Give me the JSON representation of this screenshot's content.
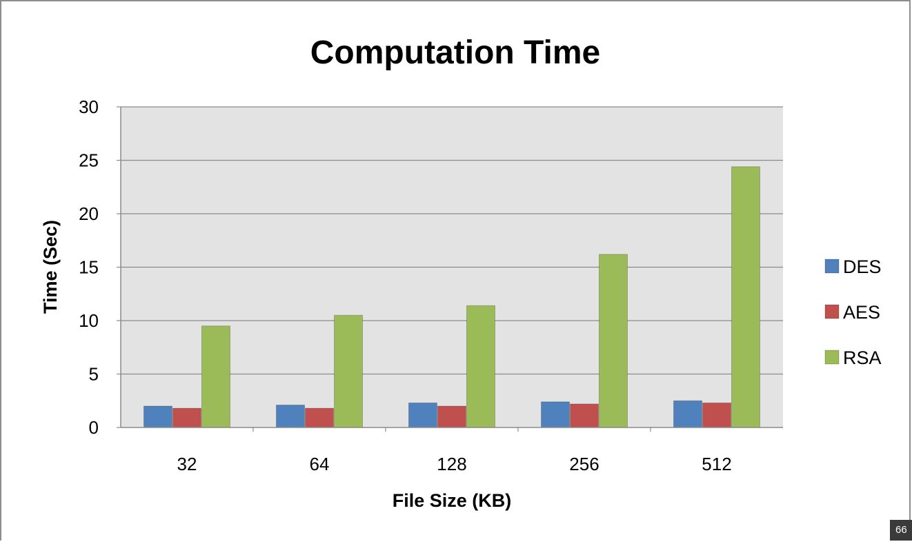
{
  "page_number": "66",
  "chart_data": {
    "type": "bar",
    "title": "Computation Time",
    "xlabel": "File Size (KB)",
    "ylabel": "Time (Sec)",
    "categories": [
      "32",
      "64",
      "128",
      "256",
      "512"
    ],
    "series": [
      {
        "name": "DES",
        "color": "#4f81bd",
        "values": [
          2.0,
          2.1,
          2.3,
          2.4,
          2.5
        ]
      },
      {
        "name": "AES",
        "color": "#c0504d",
        "values": [
          1.8,
          1.8,
          2.0,
          2.2,
          2.3
        ]
      },
      {
        "name": "RSA",
        "color": "#9bbb59",
        "values": [
          9.5,
          10.5,
          11.4,
          16.2,
          24.4
        ]
      }
    ],
    "ylim": [
      0,
      30
    ],
    "yticks": [
      0,
      5,
      10,
      15,
      20,
      25,
      30
    ],
    "grid": true,
    "legend": "right"
  }
}
